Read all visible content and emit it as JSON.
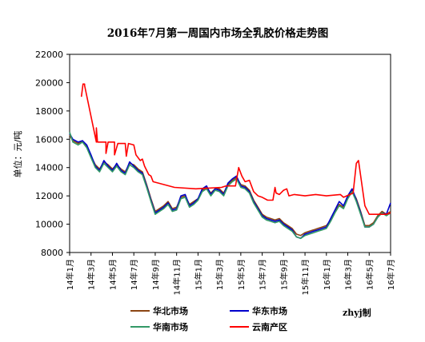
{
  "chart_data": {
    "type": "line",
    "title": "2016年7月第一周国内市场全乳胶价格走势图",
    "ylabel": "单位：元/吨",
    "xlabel": "",
    "ylim": [
      8000,
      22000
    ],
    "yticks": [
      8000,
      10000,
      12000,
      14000,
      16000,
      18000,
      20000,
      22000
    ],
    "xlim": [
      0,
      30
    ],
    "xtick_values": [
      0,
      2,
      4,
      6,
      8,
      10,
      12,
      14,
      16,
      18,
      20,
      22,
      24,
      26,
      28,
      30
    ],
    "xtick_labels": [
      "14年1月",
      "14年3月",
      "14年5月",
      "14年7月",
      "14年9月",
      "14年11月",
      "15年1月",
      "15年3月",
      "15年5月",
      "15年7月",
      "15年9月",
      "15年11月",
      "16年1月",
      "16年3月",
      "16年5月",
      "16年7月"
    ],
    "x_unit_note_hidden": false,
    "grid": false,
    "legend_position": "bottom",
    "credit": "zhyj制",
    "series": [
      {
        "name": "华北市场",
        "color": "#8B4513",
        "points": [
          [
            0,
            16300
          ],
          [
            0.3,
            15900
          ],
          [
            0.8,
            15700
          ],
          [
            1.2,
            15900
          ],
          [
            1.6,
            15500
          ],
          [
            2,
            14800
          ],
          [
            2.4,
            14200
          ],
          [
            2.8,
            13900
          ],
          [
            3.2,
            14400
          ],
          [
            3.6,
            14200
          ],
          [
            4,
            13900
          ],
          [
            4.4,
            14200
          ],
          [
            4.8,
            13900
          ],
          [
            5.2,
            13700
          ],
          [
            5.6,
            14300
          ],
          [
            6,
            14200
          ],
          [
            6.4,
            13900
          ],
          [
            6.8,
            13700
          ],
          [
            7.2,
            12800
          ],
          [
            7.6,
            11800
          ],
          [
            8,
            10900
          ],
          [
            8.4,
            11100
          ],
          [
            8.8,
            11300
          ],
          [
            9.2,
            11600
          ],
          [
            9.6,
            11100
          ],
          [
            10,
            11200
          ],
          [
            10.4,
            11900
          ],
          [
            10.8,
            12000
          ],
          [
            11.2,
            11400
          ],
          [
            11.6,
            11600
          ],
          [
            12,
            11800
          ],
          [
            12.4,
            12400
          ],
          [
            12.8,
            12600
          ],
          [
            13.2,
            12200
          ],
          [
            13.6,
            12500
          ],
          [
            14,
            12500
          ],
          [
            14.4,
            12200
          ],
          [
            14.8,
            12800
          ],
          [
            15.2,
            13100
          ],
          [
            15.6,
            13300
          ],
          [
            16,
            12800
          ],
          [
            16.4,
            12700
          ],
          [
            16.8,
            12400
          ],
          [
            17.2,
            11700
          ],
          [
            17.6,
            11200
          ],
          [
            18,
            10700
          ],
          [
            18.4,
            10500
          ],
          [
            18.8,
            10400
          ],
          [
            19.2,
            10300
          ],
          [
            19.6,
            10400
          ],
          [
            20,
            10100
          ],
          [
            20.4,
            9900
          ],
          [
            20.8,
            9700
          ],
          [
            21.2,
            9300
          ],
          [
            21.6,
            9200
          ],
          [
            22,
            9400
          ],
          [
            22.4,
            9500
          ],
          [
            22.8,
            9600
          ],
          [
            23.2,
            9700
          ],
          [
            23.6,
            9800
          ],
          [
            24,
            9900
          ],
          [
            24.4,
            10300
          ],
          [
            24.8,
            10900
          ],
          [
            25.2,
            11400
          ],
          [
            25.6,
            11200
          ],
          [
            26,
            11900
          ],
          [
            26.4,
            12400
          ],
          [
            26.8,
            11800
          ],
          [
            27.2,
            10900
          ],
          [
            27.6,
            9900
          ],
          [
            28,
            9900
          ],
          [
            28.4,
            10100
          ],
          [
            28.8,
            10600
          ],
          [
            29.2,
            10900
          ],
          [
            29.6,
            10700
          ],
          [
            30,
            10900
          ]
        ]
      },
      {
        "name": "华东市场",
        "color": "#0000CC",
        "points": [
          [
            0,
            16400
          ],
          [
            0.3,
            16000
          ],
          [
            0.8,
            15800
          ],
          [
            1.2,
            15900
          ],
          [
            1.6,
            15600
          ],
          [
            2,
            14900
          ],
          [
            2.4,
            14100
          ],
          [
            2.8,
            13800
          ],
          [
            3.2,
            14500
          ],
          [
            3.6,
            14100
          ],
          [
            4,
            13800
          ],
          [
            4.4,
            14300
          ],
          [
            4.8,
            13800
          ],
          [
            5.2,
            13600
          ],
          [
            5.6,
            14400
          ],
          [
            6,
            14100
          ],
          [
            6.4,
            13800
          ],
          [
            6.8,
            13600
          ],
          [
            7.2,
            12700
          ],
          [
            7.6,
            11700
          ],
          [
            8,
            10800
          ],
          [
            8.4,
            11000
          ],
          [
            8.8,
            11200
          ],
          [
            9.2,
            11500
          ],
          [
            9.6,
            11000
          ],
          [
            10,
            11100
          ],
          [
            10.4,
            12000
          ],
          [
            10.8,
            12100
          ],
          [
            11.2,
            11300
          ],
          [
            11.6,
            11500
          ],
          [
            12,
            11800
          ],
          [
            12.4,
            12500
          ],
          [
            12.8,
            12700
          ],
          [
            13.2,
            12100
          ],
          [
            13.6,
            12500
          ],
          [
            14,
            12400
          ],
          [
            14.4,
            12100
          ],
          [
            14.8,
            12900
          ],
          [
            15.2,
            13200
          ],
          [
            15.6,
            13400
          ],
          [
            16,
            12700
          ],
          [
            16.4,
            12600
          ],
          [
            16.8,
            12300
          ],
          [
            17.2,
            11600
          ],
          [
            17.6,
            11100
          ],
          [
            18,
            10600
          ],
          [
            18.4,
            10400
          ],
          [
            18.8,
            10300
          ],
          [
            19.2,
            10200
          ],
          [
            19.6,
            10300
          ],
          [
            20,
            10000
          ],
          [
            20.4,
            9800
          ],
          [
            20.8,
            9600
          ],
          [
            21.2,
            9100
          ],
          [
            21.6,
            9000
          ],
          [
            22,
            9300
          ],
          [
            22.4,
            9400
          ],
          [
            22.8,
            9500
          ],
          [
            23.2,
            9600
          ],
          [
            23.6,
            9700
          ],
          [
            24,
            9800
          ],
          [
            24.4,
            10400
          ],
          [
            24.8,
            11000
          ],
          [
            25.2,
            11600
          ],
          [
            25.6,
            11300
          ],
          [
            26,
            12000
          ],
          [
            26.4,
            12500
          ],
          [
            26.8,
            11700
          ],
          [
            27.2,
            10800
          ],
          [
            27.6,
            9800
          ],
          [
            28,
            9800
          ],
          [
            28.4,
            10000
          ],
          [
            28.8,
            10500
          ],
          [
            29.2,
            10800
          ],
          [
            29.6,
            10700
          ],
          [
            30,
            11500
          ]
        ]
      },
      {
        "name": "华南市场",
        "color": "#339966",
        "points": [
          [
            0,
            16500
          ],
          [
            0.3,
            15800
          ],
          [
            0.8,
            15600
          ],
          [
            1.2,
            15800
          ],
          [
            1.6,
            15400
          ],
          [
            2,
            14700
          ],
          [
            2.4,
            14000
          ],
          [
            2.8,
            13700
          ],
          [
            3.2,
            14300
          ],
          [
            3.6,
            14000
          ],
          [
            4,
            13700
          ],
          [
            4.4,
            14100
          ],
          [
            4.8,
            13700
          ],
          [
            5.2,
            13500
          ],
          [
            5.6,
            14200
          ],
          [
            6,
            14000
          ],
          [
            6.4,
            13700
          ],
          [
            6.8,
            13500
          ],
          [
            7.2,
            12600
          ],
          [
            7.6,
            11600
          ],
          [
            8,
            10700
          ],
          [
            8.4,
            10900
          ],
          [
            8.8,
            11100
          ],
          [
            9.2,
            11400
          ],
          [
            9.6,
            10900
          ],
          [
            10,
            11000
          ],
          [
            10.4,
            11800
          ],
          [
            10.8,
            11900
          ],
          [
            11.2,
            11200
          ],
          [
            11.6,
            11400
          ],
          [
            12,
            11700
          ],
          [
            12.4,
            12300
          ],
          [
            12.8,
            12500
          ],
          [
            13.2,
            12000
          ],
          [
            13.6,
            12400
          ],
          [
            14,
            12300
          ],
          [
            14.4,
            12000
          ],
          [
            14.8,
            12700
          ],
          [
            15.2,
            13000
          ],
          [
            15.6,
            13200
          ],
          [
            16,
            12600
          ],
          [
            16.4,
            12500
          ],
          [
            16.8,
            12200
          ],
          [
            17.2,
            11500
          ],
          [
            17.6,
            11000
          ],
          [
            18,
            10500
          ],
          [
            18.4,
            10300
          ],
          [
            18.8,
            10200
          ],
          [
            19.2,
            10100
          ],
          [
            19.6,
            10200
          ],
          [
            20,
            9900
          ],
          [
            20.4,
            9700
          ],
          [
            20.8,
            9500
          ],
          [
            21.2,
            9100
          ],
          [
            21.6,
            9000
          ],
          [
            22,
            9200
          ],
          [
            22.4,
            9300
          ],
          [
            22.8,
            9400
          ],
          [
            23.2,
            9500
          ],
          [
            23.6,
            9600
          ],
          [
            24,
            9700
          ],
          [
            24.4,
            10200
          ],
          [
            24.8,
            10800
          ],
          [
            25.2,
            11300
          ],
          [
            25.6,
            11100
          ],
          [
            26,
            11800
          ],
          [
            26.4,
            12300
          ],
          [
            26.8,
            11600
          ],
          [
            27.2,
            10700
          ],
          [
            27.6,
            9800
          ],
          [
            28,
            9800
          ],
          [
            28.4,
            10000
          ],
          [
            28.8,
            10500
          ],
          [
            29.2,
            10800
          ],
          [
            29.6,
            10600
          ],
          [
            30,
            10800
          ]
        ]
      },
      {
        "name": "云南产区",
        "color": "#FF0000",
        "points": [
          [
            1.1,
            19000
          ],
          [
            1.25,
            19900
          ],
          [
            1.4,
            19900
          ],
          [
            1.4,
            19800
          ],
          [
            2.5,
            15800
          ],
          [
            2.5,
            16800
          ],
          [
            2.6,
            15800
          ],
          [
            3.4,
            15800
          ],
          [
            3.4,
            15000
          ],
          [
            3.6,
            15800
          ],
          [
            4.2,
            15800
          ],
          [
            4.2,
            14900
          ],
          [
            4.5,
            15700
          ],
          [
            5.2,
            15700
          ],
          [
            5.3,
            14800
          ],
          [
            5.5,
            15700
          ],
          [
            6,
            15600
          ],
          [
            6.2,
            14900
          ],
          [
            6.6,
            14500
          ],
          [
            6.8,
            14600
          ],
          [
            7,
            14100
          ],
          [
            7.4,
            13500
          ],
          [
            7.6,
            13400
          ],
          [
            7.8,
            13000
          ],
          [
            9.8,
            12600
          ],
          [
            11.8,
            12500
          ],
          [
            14.2,
            12600
          ],
          [
            14.6,
            12700
          ],
          [
            15.5,
            12700
          ],
          [
            15.8,
            14000
          ],
          [
            16.1,
            13400
          ],
          [
            16.4,
            13000
          ],
          [
            16.8,
            13100
          ],
          [
            17.2,
            12300
          ],
          [
            17.6,
            12000
          ],
          [
            18,
            11900
          ],
          [
            18.5,
            11700
          ],
          [
            19,
            11700
          ],
          [
            19.2,
            12600
          ],
          [
            19.3,
            12200
          ],
          [
            19.6,
            12100
          ],
          [
            20,
            12400
          ],
          [
            20.3,
            12500
          ],
          [
            20.5,
            12000
          ],
          [
            21,
            12100
          ],
          [
            22,
            12000
          ],
          [
            23,
            12100
          ],
          [
            24,
            12000
          ],
          [
            25.3,
            12100
          ],
          [
            25.6,
            11900
          ],
          [
            26.5,
            12200
          ],
          [
            26.8,
            14300
          ],
          [
            27,
            14500
          ],
          [
            27.3,
            12900
          ],
          [
            27.6,
            11300
          ],
          [
            28,
            10700
          ],
          [
            29,
            10700
          ],
          [
            29.6,
            10700
          ],
          [
            30,
            10800
          ]
        ]
      }
    ]
  }
}
